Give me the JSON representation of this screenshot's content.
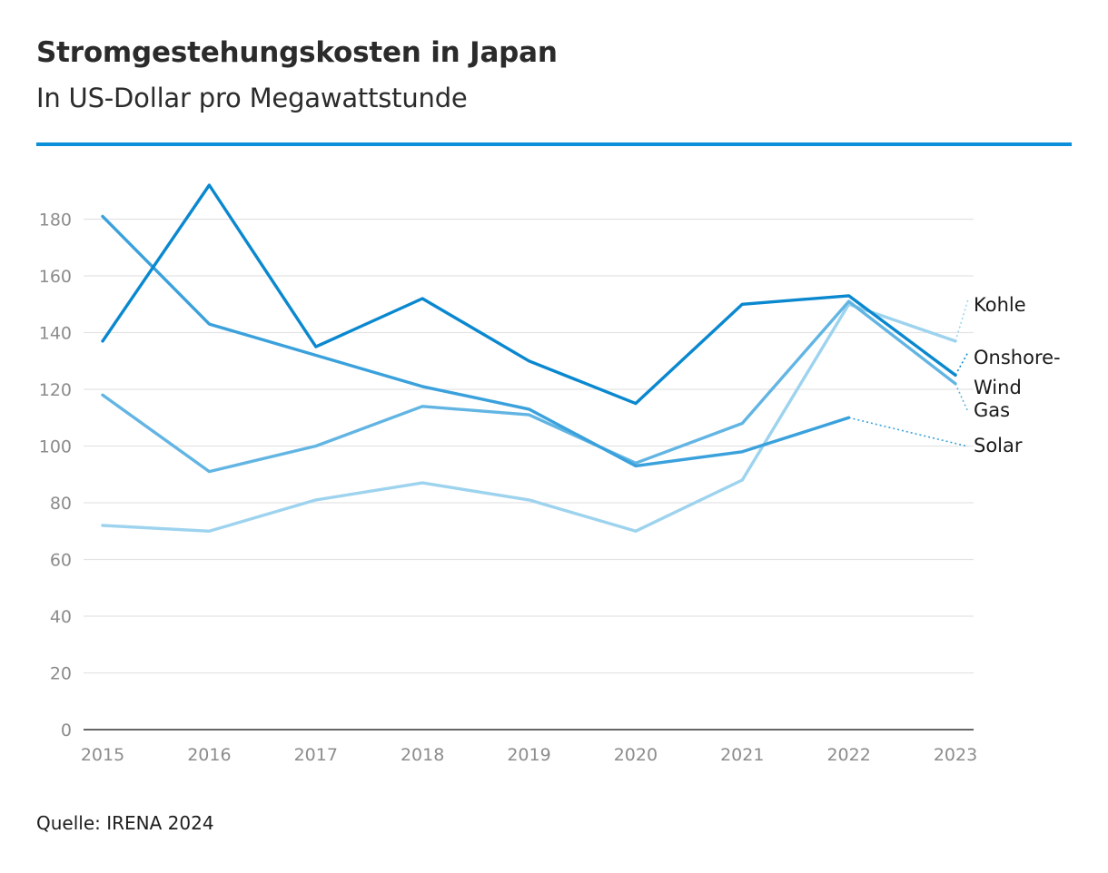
{
  "header": {
    "title": "Stromgestehungskosten in Japan",
    "subtitle": "In US-Dollar pro Megawattstunde"
  },
  "source": "Quelle: IRENA 2024",
  "colors": {
    "accent_rule": "#0a8fd8",
    "gridline": "#e3e3e3",
    "axis": "#333333"
  },
  "chart_data": {
    "type": "line",
    "title": "Stromgestehungskosten in Japan",
    "subtitle": "In US-Dollar pro Megawattstunde",
    "xlabel": "",
    "ylabel": "",
    "ylim": [
      0,
      190
    ],
    "yticks": [
      0,
      20,
      40,
      60,
      80,
      100,
      120,
      140,
      160,
      180
    ],
    "grid": true,
    "legend": "right end labels",
    "x": [
      "2015",
      "2016",
      "2017",
      "2018",
      "2019",
      "2020",
      "2021",
      "2022",
      "2023"
    ],
    "series": [
      {
        "name": "Kohle",
        "color": "#9dd3ee",
        "values": [
          72,
          70,
          81,
          87,
          81,
          70,
          88,
          150,
          137
        ]
      },
      {
        "name": "Gas",
        "color": "#62b5e3",
        "values": [
          118,
          91,
          100,
          114,
          111,
          94,
          108,
          151,
          122
        ]
      },
      {
        "name": "Solar",
        "color": "#3aa1dc",
        "values": [
          181,
          143,
          132,
          121,
          113,
          93,
          98,
          110,
          null
        ]
      },
      {
        "name": "Onshore-Wind",
        "color": "#0a88cf",
        "values": [
          137,
          192,
          135,
          152,
          130,
          115,
          150,
          153,
          125
        ]
      }
    ],
    "end_labels": [
      {
        "series": "Kohle",
        "lines": [
          "Kohle"
        ]
      },
      {
        "series": "Onshore-Wind",
        "lines": [
          "Onshore-",
          "Wind"
        ]
      },
      {
        "series": "Gas",
        "lines": [
          "Gas"
        ]
      },
      {
        "series": "Solar",
        "lines": [
          "Solar"
        ]
      }
    ]
  }
}
